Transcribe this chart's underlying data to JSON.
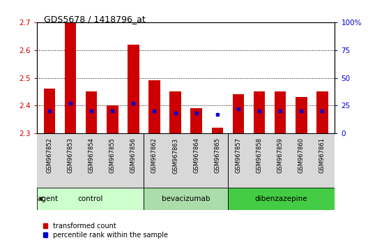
{
  "title": "GDS5678 / 1418796_at",
  "samples": [
    "GSM967852",
    "GSM967853",
    "GSM967854",
    "GSM967855",
    "GSM967856",
    "GSM967862",
    "GSM967863",
    "GSM967864",
    "GSM967865",
    "GSM967857",
    "GSM967858",
    "GSM967859",
    "GSM967860",
    "GSM967861"
  ],
  "red_values": [
    2.46,
    2.7,
    2.45,
    2.4,
    2.62,
    2.49,
    2.45,
    2.39,
    2.32,
    2.44,
    2.45,
    2.45,
    2.43,
    2.45
  ],
  "blue_values": [
    20,
    27,
    20,
    20,
    27,
    20,
    18,
    18,
    17,
    22,
    20,
    20,
    20,
    20
  ],
  "ylim_left": [
    2.3,
    2.7
  ],
  "ylim_right": [
    0,
    100
  ],
  "yticks_left": [
    2.3,
    2.4,
    2.5,
    2.6,
    2.7
  ],
  "yticks_right": [
    0,
    25,
    50,
    75,
    100
  ],
  "ytick_labels_right": [
    "0",
    "25",
    "50",
    "75",
    "100%"
  ],
  "groups": [
    {
      "label": "control",
      "start": 0,
      "end": 5,
      "color": "#ccffcc"
    },
    {
      "label": "bevacizumab",
      "start": 5,
      "end": 9,
      "color": "#aaddaa"
    },
    {
      "label": "dibenzazepine",
      "start": 9,
      "end": 14,
      "color": "#44cc44"
    }
  ],
  "bar_width": 0.55,
  "bar_bottom": 2.3,
  "red_color": "#cc0000",
  "blue_color": "#0000cc",
  "agent_label": "agent",
  "legend_red": "transformed count",
  "legend_blue": "percentile rank within the sample",
  "left_tick_color": "#cc0000",
  "right_tick_color": "#0000cc",
  "bg_gray": "#d8d8d8"
}
